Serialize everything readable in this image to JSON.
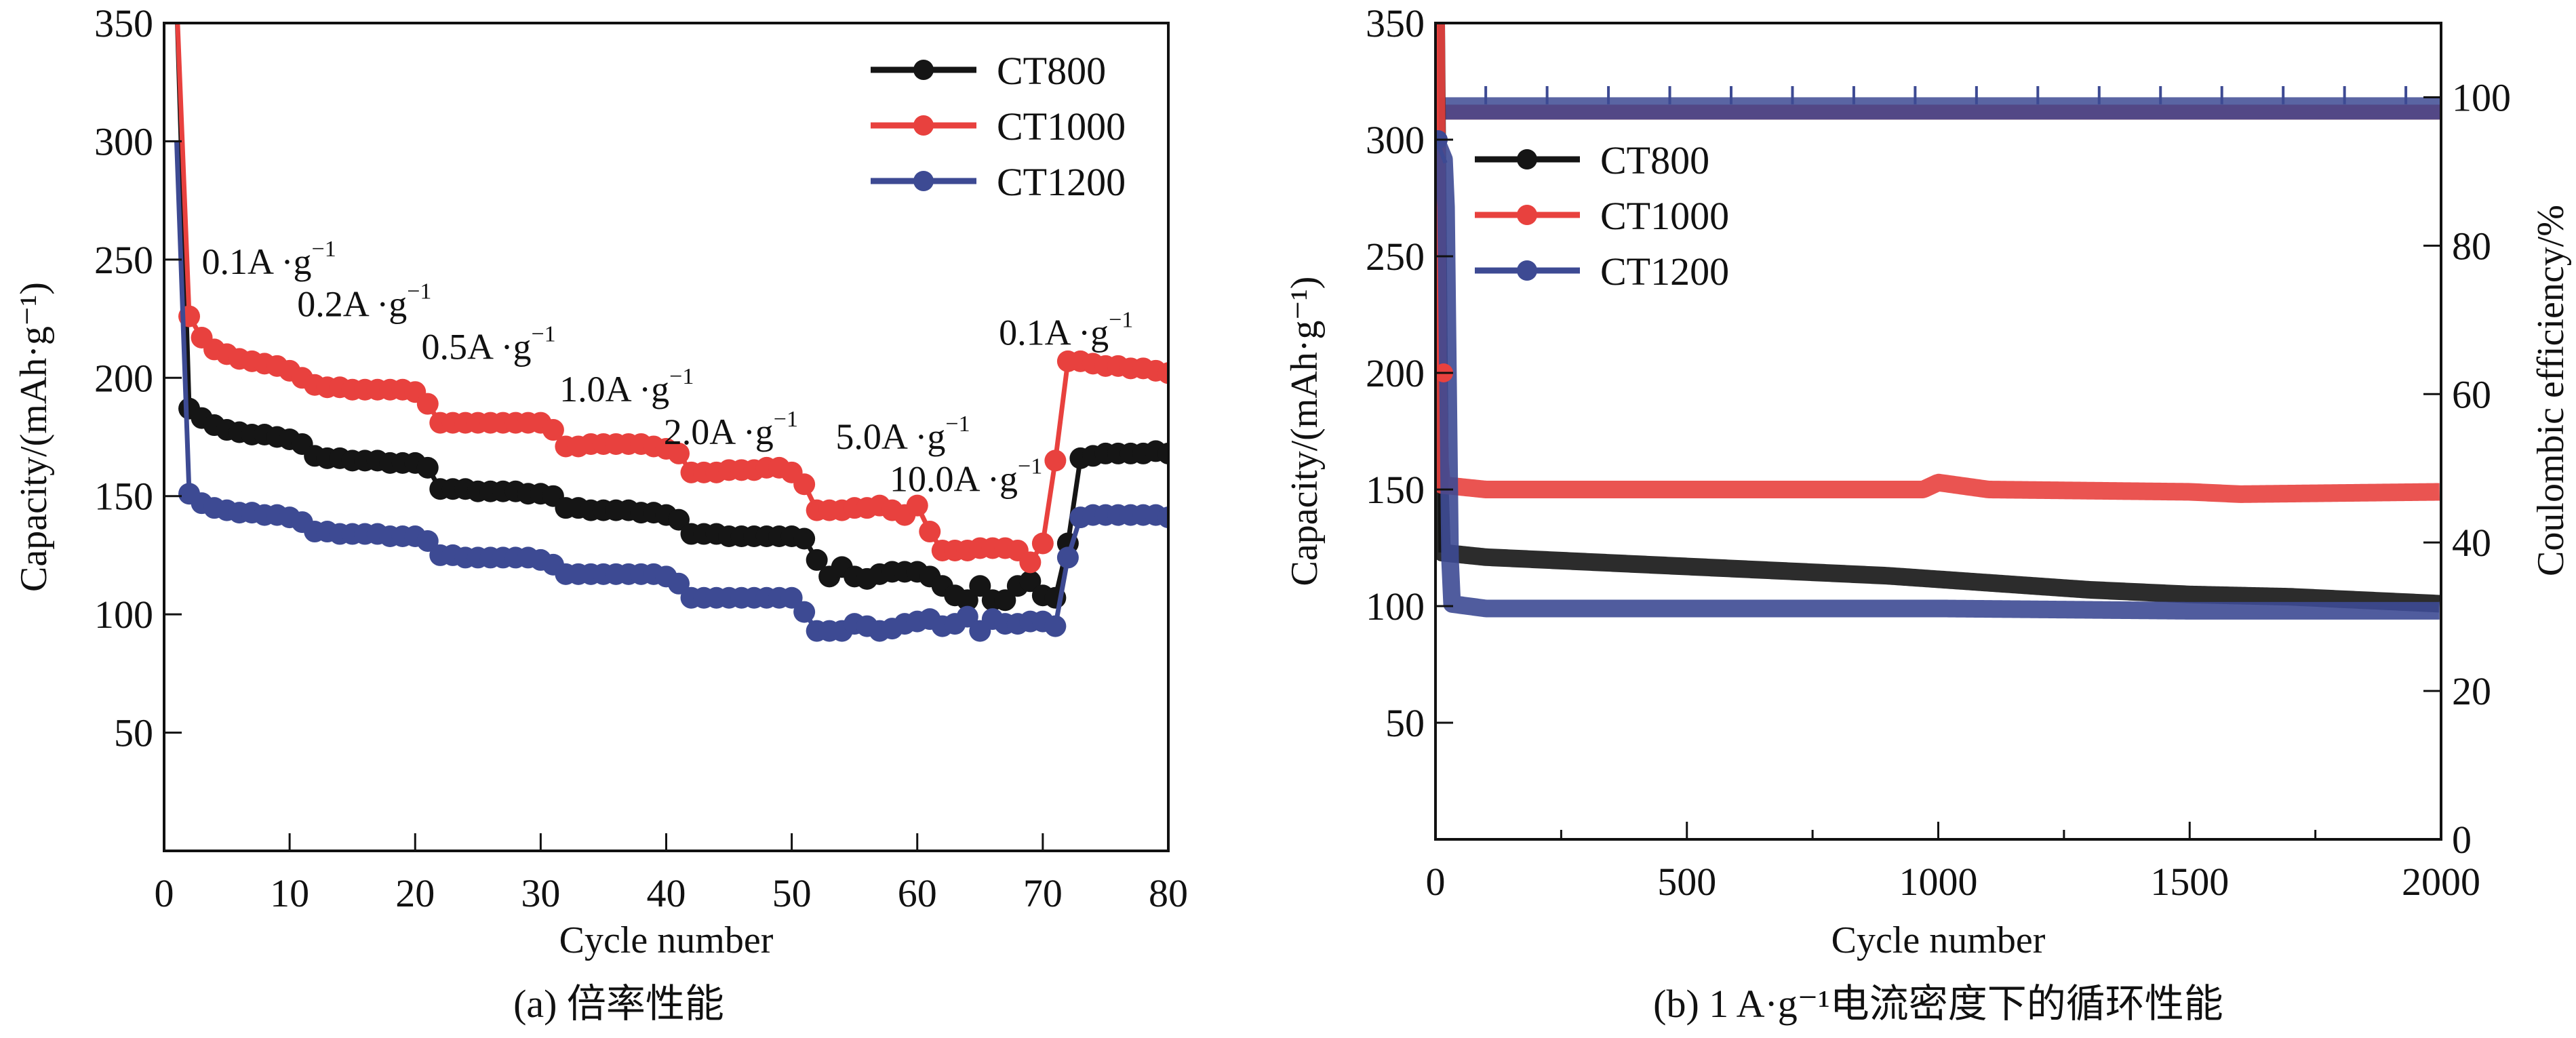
{
  "figure": {
    "panels": [
      "a",
      "b"
    ]
  },
  "colors": {
    "CT800": "#151515",
    "CT1000": "#e8413e",
    "CT1200": "#3d4a93"
  },
  "chart_data": [
    {
      "id": "a",
      "type": "line",
      "caption": "(a) 倍率性能",
      "xlabel": "Cycle number",
      "ylabel": "Capacity/(mAh·g⁻¹)",
      "xlim": [
        0,
        80
      ],
      "ylim": [
        0,
        350
      ],
      "xticks": [
        0,
        10,
        20,
        30,
        40,
        50,
        60,
        70,
        80
      ],
      "yticks": [
        50,
        100,
        150,
        200,
        250,
        300,
        350
      ],
      "legend": {
        "position": "top-right",
        "entries": [
          "CT800",
          "CT1000",
          "CT1200"
        ]
      },
      "annotations": [
        {
          "text": "0.1A ·g",
          "sup": "−1",
          "x": 3,
          "y": 244
        },
        {
          "text": "0.2A ·g",
          "sup": "−1",
          "x": 10.6,
          "y": 226
        },
        {
          "text": "0.5A ·g",
          "sup": "−1",
          "x": 20.5,
          "y": 208
        },
        {
          "text": "1.0A ·g",
          "sup": "−1",
          "x": 31.5,
          "y": 190
        },
        {
          "text": "2.0A ·g",
          "sup": "−1",
          "x": 39.8,
          "y": 172
        },
        {
          "text": "5.0A ·g",
          "sup": "−1",
          "x": 53.5,
          "y": 170
        },
        {
          "text": "10.0A ·g",
          "sup": "−1",
          "x": 57.8,
          "y": 152
        },
        {
          "text": "0.1A ·g",
          "sup": "−1",
          "x": 66.5,
          "y": 214
        }
      ],
      "x": [
        1,
        2,
        3,
        4,
        5,
        6,
        7,
        8,
        9,
        10,
        11,
        12,
        13,
        14,
        15,
        16,
        17,
        18,
        19,
        20,
        21,
        22,
        23,
        24,
        25,
        26,
        27,
        28,
        29,
        30,
        31,
        32,
        33,
        34,
        35,
        36,
        37,
        38,
        39,
        40,
        41,
        42,
        43,
        44,
        45,
        46,
        47,
        48,
        49,
        50,
        51,
        52,
        53,
        54,
        55,
        56,
        57,
        58,
        59,
        60,
        61,
        62,
        63,
        64,
        65,
        66,
        67,
        68,
        69,
        70,
        71,
        72,
        73,
        74,
        75,
        76,
        77,
        78,
        79,
        80
      ],
      "series": [
        {
          "name": "CT800",
          "values": [
            360,
            187,
            183,
            180,
            178,
            177,
            176,
            176,
            175,
            174,
            172,
            167,
            166,
            166,
            165,
            165,
            165,
            164,
            164,
            164,
            162,
            153,
            153,
            153,
            152,
            152,
            152,
            152,
            151,
            151,
            150,
            145,
            145,
            144,
            144,
            144,
            144,
            143,
            143,
            142,
            140,
            134,
            134,
            134,
            133,
            133,
            133,
            133,
            133,
            133,
            132,
            123,
            116,
            120,
            116,
            115,
            117,
            118,
            118,
            118,
            116,
            112,
            108,
            106,
            112,
            106,
            106,
            112,
            114,
            108,
            107,
            130,
            166,
            167,
            168,
            168,
            168,
            168,
            169,
            168
          ]
        },
        {
          "name": "CT1000",
          "values": [
            360,
            226,
            217,
            212,
            210,
            208,
            207,
            206,
            205,
            203,
            200,
            197,
            196,
            196,
            195,
            195,
            195,
            195,
            195,
            194,
            189,
            181,
            181,
            181,
            181,
            181,
            181,
            181,
            181,
            181,
            178,
            171,
            171,
            172,
            172,
            172,
            172,
            172,
            171,
            170,
            168,
            160,
            160,
            160,
            161,
            161,
            161,
            162,
            162,
            160,
            155,
            144,
            144,
            144,
            145,
            145,
            146,
            144,
            142,
            146,
            135,
            127,
            127,
            127,
            128,
            128,
            128,
            127,
            122,
            130,
            165,
            207,
            207,
            206,
            205,
            205,
            204,
            204,
            203,
            202
          ]
        },
        {
          "name": "CT1200",
          "values": [
            300,
            151,
            147,
            145,
            144,
            143,
            143,
            142,
            142,
            141,
            139,
            135,
            135,
            134,
            134,
            134,
            134,
            133,
            133,
            133,
            131,
            125,
            125,
            124,
            124,
            124,
            124,
            124,
            124,
            123,
            121,
            117,
            117,
            117,
            117,
            117,
            117,
            117,
            117,
            116,
            113,
            107,
            107,
            107,
            107,
            107,
            107,
            107,
            107,
            107,
            101,
            93,
            93,
            93,
            96,
            95,
            93,
            94,
            96,
            97,
            98,
            95,
            96,
            99,
            93,
            98,
            96,
            96,
            97,
            97,
            95,
            124,
            141,
            142,
            142,
            142,
            142,
            142,
            142,
            141
          ]
        }
      ]
    },
    {
      "id": "b",
      "type": "line",
      "caption": "(b) 1 A·g⁻¹电流密度下的循环性能",
      "xlabel": "Cycle number",
      "ylabel": "Capacity/(mAh·g⁻¹)",
      "ylabel_right": "Coulombic efficiency/%",
      "xlim": [
        0,
        2000
      ],
      "ylim": [
        0,
        350
      ],
      "ylim_right": [
        0,
        110
      ],
      "xticks": [
        0,
        500,
        1000,
        1500,
        2000
      ],
      "yticks": [
        50,
        100,
        150,
        200,
        250,
        300,
        350
      ],
      "yticks_right": [
        0,
        20,
        40,
        60,
        80,
        100
      ],
      "legend": {
        "position": "top-left",
        "entries": [
          "CT800",
          "CT1000",
          "CT1200"
        ]
      },
      "capacity_series": [
        {
          "name": "CT800",
          "x": [
            1,
            10,
            100,
            300,
            500,
            700,
            900,
            1100,
            1300,
            1500,
            1700,
            1900,
            2000
          ],
          "values": [
            360,
            123,
            121,
            119,
            117,
            115,
            113,
            110,
            107,
            105,
            104,
            102,
            101
          ]
        },
        {
          "name": "CT1000",
          "x": [
            1,
            5,
            10,
            100,
            500,
            970,
            1000,
            1100,
            1500,
            1600,
            2000
          ],
          "values": [
            360,
            200,
            152,
            150,
            150,
            150,
            153,
            150,
            149,
            148,
            149
          ]
        },
        {
          "name": "CT1200",
          "x": [
            1,
            20,
            30,
            100,
            500,
            1000,
            1500,
            2000
          ],
          "values": [
            300,
            290,
            101,
            99,
            99,
            99,
            98,
            98
          ]
        }
      ],
      "efficiency_series": [
        {
          "name": "CT800",
          "values_pct_range": [
            97,
            99
          ]
        },
        {
          "name": "CT1000",
          "values_pct_range": [
            97,
            99
          ]
        },
        {
          "name": "CT1200",
          "values_pct_range": [
            97,
            100
          ]
        }
      ]
    }
  ]
}
